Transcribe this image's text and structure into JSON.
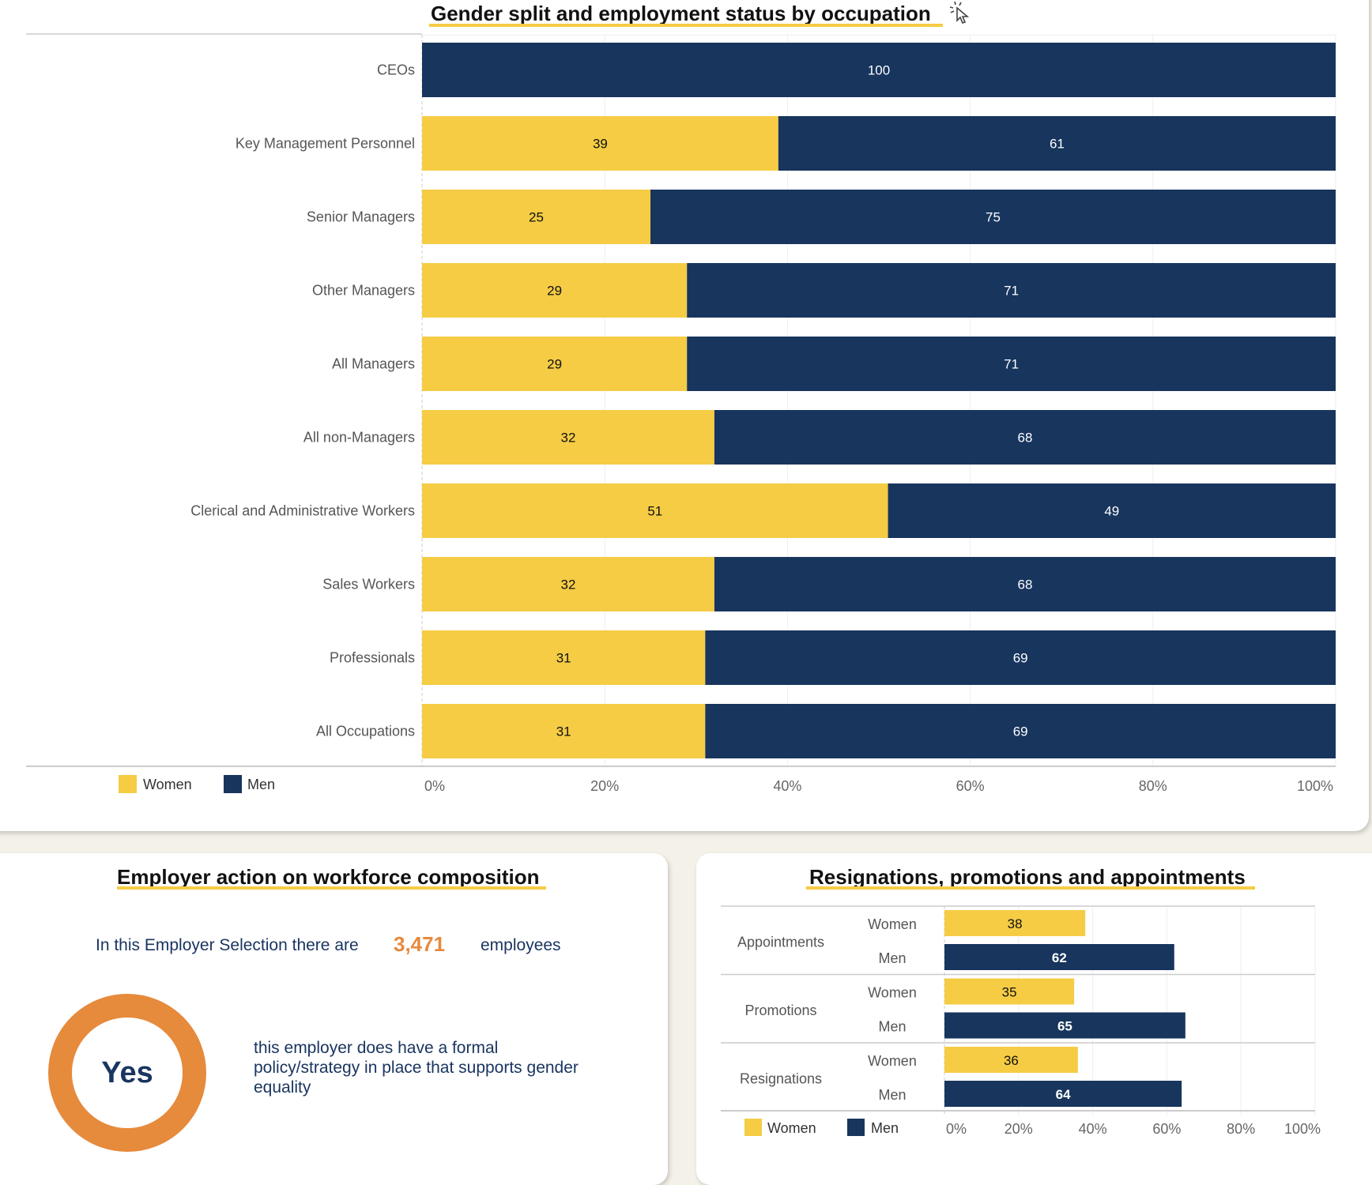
{
  "colors": {
    "women": "#f5cc44",
    "men": "#17355d",
    "accent_orange": "#e68a3c",
    "text_navy": "#1a3560"
  },
  "cursor_icon": "click-cursor-icon",
  "chart_data": [
    {
      "type": "bar",
      "orientation": "horizontal",
      "stacked": true,
      "title": "Gender split and employment status by occupation",
      "categories": [
        "CEOs",
        "Key Management Personnel",
        "Senior Managers",
        "Other Managers",
        "All Managers",
        "All non-Managers",
        "Clerical and Administrative Workers",
        "Sales Workers",
        "Professionals",
        "All Occupations"
      ],
      "series": [
        {
          "name": "Women",
          "values": [
            0,
            39,
            25,
            29,
            29,
            32,
            51,
            32,
            31,
            31
          ]
        },
        {
          "name": "Men",
          "values": [
            100,
            61,
            75,
            71,
            71,
            68,
            49,
            68,
            69,
            69
          ]
        }
      ],
      "xlabel": "",
      "ylabel": "",
      "xlim": [
        0,
        100
      ],
      "xticks": [
        "0%",
        "20%",
        "40%",
        "60%",
        "80%",
        "100%"
      ],
      "grid": true,
      "legend": {
        "position": "bottom-left",
        "entries": [
          "Women",
          "Men"
        ]
      }
    },
    {
      "type": "bar",
      "orientation": "horizontal",
      "grouped": true,
      "title": "Resignations, promotions and appointments",
      "groups": [
        {
          "name": "Appointments",
          "rows": [
            {
              "label": "Women",
              "value": 38
            },
            {
              "label": "Men",
              "value": 62
            }
          ]
        },
        {
          "name": "Promotions",
          "rows": [
            {
              "label": "Women",
              "value": 35
            },
            {
              "label": "Men",
              "value": 65
            }
          ]
        },
        {
          "name": "Resignations",
          "rows": [
            {
              "label": "Women",
              "value": 36
            },
            {
              "label": "Men",
              "value": 64
            }
          ]
        }
      ],
      "xlim": [
        0,
        100
      ],
      "xticks": [
        "0%",
        "20%",
        "40%",
        "60%",
        "80%",
        "100%"
      ],
      "grid": true,
      "legend": {
        "position": "bottom-left",
        "entries": [
          "Women",
          "Men"
        ]
      }
    }
  ],
  "employer_action": {
    "title": "Employer action on workforce composition",
    "employees_prefix": "In this Employer Selection there are",
    "employee_count": "3,471",
    "employees_suffix": "employees",
    "policy_answer": "Yes",
    "policy_text": "this employer does have a formal policy/strategy in place that supports gender equality"
  }
}
